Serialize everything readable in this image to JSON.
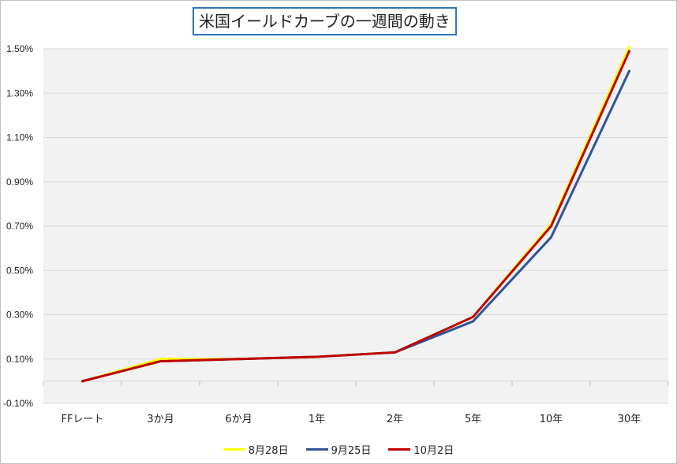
{
  "chart_data": {
    "type": "line",
    "title": "米国イールドカーブの一週間の動き",
    "categories": [
      "FFレート",
      "3か月",
      "6か月",
      "1年",
      "2年",
      "5年",
      "10年",
      "30年"
    ],
    "ylim": [
      -0.1,
      1.5
    ],
    "yticks": [
      "-0.10%",
      "0.10%",
      "0.30%",
      "0.50%",
      "0.70%",
      "0.90%",
      "1.10%",
      "1.30%",
      "1.50%"
    ],
    "ytick_values": [
      -0.1,
      0.1,
      0.3,
      0.5,
      0.7,
      0.9,
      1.1,
      1.3,
      1.5
    ],
    "grid": true,
    "legend_position": "bottom",
    "series": [
      {
        "name": "8月28日",
        "color": "#ffff00",
        "values": [
          0.0,
          0.1,
          0.1,
          0.11,
          0.13,
          0.29,
          0.71,
          1.51
        ]
      },
      {
        "name": "9月25日",
        "color": "#2f5597",
        "values": [
          0.0,
          0.09,
          0.1,
          0.11,
          0.13,
          0.27,
          0.65,
          1.4
        ]
      },
      {
        "name": "10月2日",
        "color": "#c00000",
        "values": [
          0.0,
          0.09,
          0.1,
          0.11,
          0.13,
          0.29,
          0.7,
          1.49
        ]
      }
    ]
  }
}
